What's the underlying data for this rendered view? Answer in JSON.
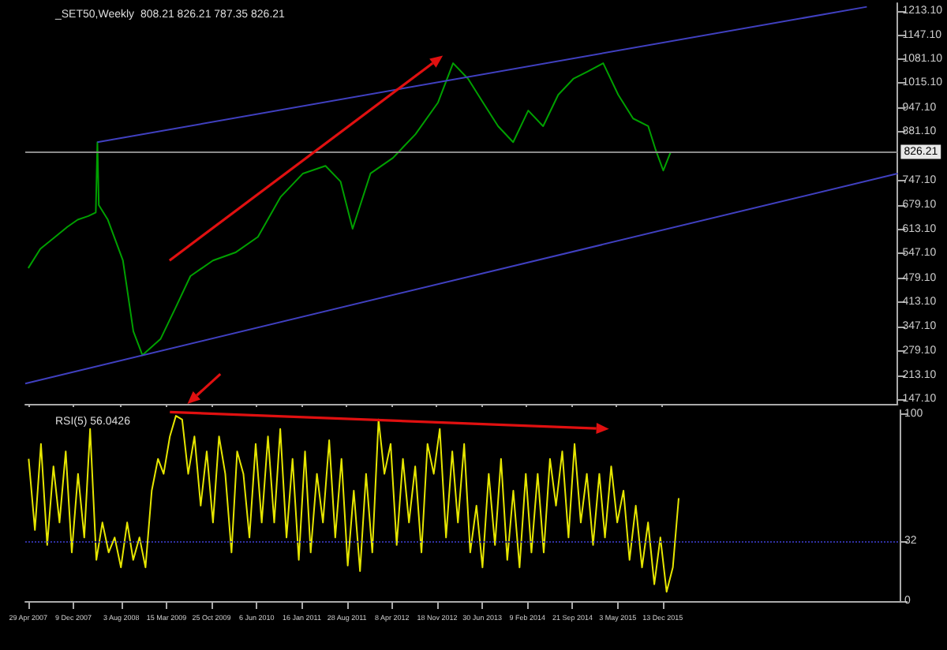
{
  "chart_data": [
    {
      "type": "line",
      "title": "_SET50,Weekly  808.21 826.21 787.35 826.21",
      "x": [
        "2007-04-29",
        "2007-06-28",
        "2007-09-10",
        "2007-11-09",
        "2007-12-31",
        "2008-02-22",
        "2008-03-30",
        "2008-04-07",
        "2008-04-14",
        "2008-05-29",
        "2008-08-12",
        "2008-10-03",
        "2008-11-17",
        "2009-02-15",
        "2009-05-01",
        "2009-07-14",
        "2009-11-03",
        "2010-02-23",
        "2010-06-15",
        "2010-10-05",
        "2011-01-25",
        "2011-05-17",
        "2011-07-31",
        "2011-09-29",
        "2011-12-27",
        "2012-04-17",
        "2012-08-07",
        "2012-11-27",
        "2013-02-10",
        "2013-04-26",
        "2013-07-09",
        "2013-09-22",
        "2013-12-06",
        "2014-02-19",
        "2014-05-04",
        "2014-07-18",
        "2014-10-01",
        "2014-12-14",
        "2015-02-27",
        "2015-05-13",
        "2015-07-26",
        "2015-10-09",
        "2015-11-15",
        "2015-12-23",
        "2016-01-29"
      ],
      "series": [
        {
          "color": "#00a000",
          "values": [
            507,
            560,
            593,
            620,
            640,
            650,
            660,
            853,
            680,
            640,
            528,
            333,
            268,
            312,
            398,
            485,
            528,
            550,
            593,
            702,
            767,
            788,
            745,
            615,
            767,
            810,
            875,
            962,
            1070,
            1027,
            962,
            897,
            853,
            940,
            897,
            983,
            1027,
            1048,
            1070,
            983,
            918,
            897,
            832,
            775,
            826
          ]
        },
        {
          "color": "#4040c0",
          "x": [
            "2008-04-07",
            "2018-10-01"
          ],
          "values": [
            853,
            1225
          ]
        },
        {
          "color": "#4040c0",
          "x": [
            "2007-04-14",
            "2019-03-03"
          ],
          "values": [
            190,
            767
          ]
        }
      ],
      "xlim": [
        "2007-04-14",
        "2019-03-03"
      ],
      "xticks": [
        {
          "value": "2007-04-29",
          "label": null
        },
        {
          "value": "2007-12-09",
          "label": null
        },
        {
          "value": "2008-08-03",
          "label": null
        },
        {
          "value": "2009-03-15",
          "label": null
        },
        {
          "value": "2009-10-25",
          "label": null
        },
        {
          "value": "2010-06-06",
          "label": null
        },
        {
          "value": "2011-01-16",
          "label": null
        },
        {
          "value": "2011-08-28",
          "label": null
        },
        {
          "value": "2012-04-08",
          "label": null
        },
        {
          "value": "2012-11-18",
          "label": null
        },
        {
          "value": "2013-06-30",
          "label": null
        },
        {
          "value": "2014-02-09",
          "label": null
        },
        {
          "value": "2014-09-21",
          "label": null
        },
        {
          "value": "2015-05-03",
          "label": null
        },
        {
          "value": "2015-12-13",
          "label": null
        }
      ],
      "ylim": [
        134,
        1235
      ],
      "yticks": [
        {
          "value": 147.1,
          "label": "147.10"
        },
        {
          "value": 213.1,
          "label": "213.10"
        },
        {
          "value": 279.1,
          "label": "279.10"
        },
        {
          "value": 347.1,
          "label": "347.10"
        },
        {
          "value": 413.1,
          "label": "413.10"
        },
        {
          "value": 479.1,
          "label": "479.10"
        },
        {
          "value": 547.1,
          "label": "547.10"
        },
        {
          "value": 613.1,
          "label": "613.10"
        },
        {
          "value": 679.1,
          "label": "679.10"
        },
        {
          "value": 747.1,
          "label": "747.10"
        },
        {
          "value": 881.1,
          "label": "881.10"
        },
        {
          "value": 947.1,
          "label": "947.10"
        },
        {
          "value": 1015.1,
          "label": "1015.10"
        },
        {
          "value": 1081.1,
          "label": "1081.10"
        },
        {
          "value": 1147.1,
          "label": "1147.10"
        },
        {
          "value": 1213.1,
          "label": "1213.10"
        }
      ],
      "ref_lines": [
        {
          "axis": "y",
          "value": 826.21,
          "label": "826.21",
          "color": "#8a8a8a"
        }
      ],
      "tick_labels": "y"
    },
    {
      "type": "line",
      "title": "RSI(5) 56.0426",
      "x": [
        "2007-05",
        "2007-06",
        "2007-07",
        "2007-08",
        "2007-09",
        "2007-10",
        "2007-11",
        "2007-12",
        "2008-01",
        "2008-02",
        "2008-03",
        "2008-04",
        "2008-05",
        "2008-06",
        "2008-07",
        "2008-08",
        "2008-09",
        "2008-10",
        "2008-11",
        "2008-12",
        "2009-01",
        "2009-02",
        "2009-03",
        "2009-04",
        "2009-05",
        "2009-06",
        "2009-07",
        "2009-08",
        "2009-09",
        "2009-10",
        "2009-11",
        "2009-12",
        "2010-01",
        "2010-02",
        "2010-03",
        "2010-04",
        "2010-05",
        "2010-06",
        "2010-07",
        "2010-08",
        "2010-09",
        "2010-10",
        "2010-11",
        "2010-12",
        "2011-01",
        "2011-02",
        "2011-03",
        "2011-04",
        "2011-05",
        "2011-06",
        "2011-07",
        "2011-08",
        "2011-09",
        "2011-10",
        "2011-11",
        "2011-12",
        "2012-01",
        "2012-02",
        "2012-03",
        "2012-04",
        "2012-05",
        "2012-06",
        "2012-07",
        "2012-08",
        "2012-09",
        "2012-10",
        "2012-11",
        "2012-12",
        "2013-01",
        "2013-02",
        "2013-03",
        "2013-04",
        "2013-05",
        "2013-06",
        "2013-07",
        "2013-08",
        "2013-09",
        "2013-10",
        "2013-11",
        "2013-12",
        "2014-01",
        "2014-02",
        "2014-03",
        "2014-04",
        "2014-05",
        "2014-06",
        "2014-07",
        "2014-08",
        "2014-09",
        "2014-10",
        "2014-11",
        "2014-12",
        "2015-01",
        "2015-02",
        "2015-03",
        "2015-04",
        "2015-05",
        "2015-06",
        "2015-07",
        "2015-08",
        "2015-09",
        "2015-10",
        "2015-11",
        "2015-12",
        "2016-01",
        "2016-02",
        "2016-03"
      ],
      "series": [
        {
          "color": "#e6e600",
          "values": [
            76,
            38,
            84,
            30,
            72,
            42,
            80,
            26,
            68,
            34,
            92,
            22,
            42,
            26,
            34,
            18,
            42,
            22,
            34,
            18,
            59,
            76,
            68,
            88,
            99,
            97,
            68,
            88,
            51,
            80,
            42,
            88,
            68,
            26,
            80,
            68,
            34,
            84,
            42,
            88,
            42,
            92,
            34,
            76,
            22,
            80,
            26,
            68,
            42,
            86,
            34,
            76,
            19,
            59,
            16,
            68,
            26,
            97,
            68,
            84,
            30,
            76,
            42,
            72,
            26,
            84,
            68,
            92,
            34,
            80,
            42,
            84,
            26,
            51,
            18,
            68,
            30,
            76,
            22,
            59,
            18,
            68,
            26,
            68,
            26,
            76,
            51,
            80,
            34,
            84,
            42,
            68,
            30,
            68,
            34,
            72,
            42,
            59,
            22,
            51,
            18,
            42,
            9,
            34,
            5,
            18,
            55
          ]
        }
      ],
      "xlim": [
        "2007-04-14",
        "2019-03-03"
      ],
      "xticks": [
        {
          "value": "2007-04-29",
          "label": "29 Apr 2007"
        },
        {
          "value": "2007-12-09",
          "label": "9 Dec 2007"
        },
        {
          "value": "2008-08-03",
          "label": "3 Aug 2008"
        },
        {
          "value": "2009-03-15",
          "label": "15 Mar 2009"
        },
        {
          "value": "2009-10-25",
          "label": "25 Oct 2009"
        },
        {
          "value": "2010-06-06",
          "label": "6 Jun 2010"
        },
        {
          "value": "2011-01-16",
          "label": "16 Jan 2011"
        },
        {
          "value": "2011-08-28",
          "label": "28 Aug 2011"
        },
        {
          "value": "2012-04-08",
          "label": "8 Apr 2012"
        },
        {
          "value": "2012-11-18",
          "label": "18 Nov 2012"
        },
        {
          "value": "2013-06-30",
          "label": "30 Jun 2013"
        },
        {
          "value": "2014-02-09",
          "label": "9 Feb 2014"
        },
        {
          "value": "2014-09-21",
          "label": "21 Sep 2014"
        },
        {
          "value": "2015-05-03",
          "label": "3 May 2015"
        },
        {
          "value": "2015-12-13",
          "label": "13 Dec 2015"
        }
      ],
      "ylim": [
        0,
        102
      ],
      "yticks": [
        0,
        32,
        100
      ],
      "ref_lines": [
        {
          "axis": "y",
          "value": 32,
          "color": "#3030a0",
          "line_style": "dotted"
        }
      ]
    }
  ]
}
